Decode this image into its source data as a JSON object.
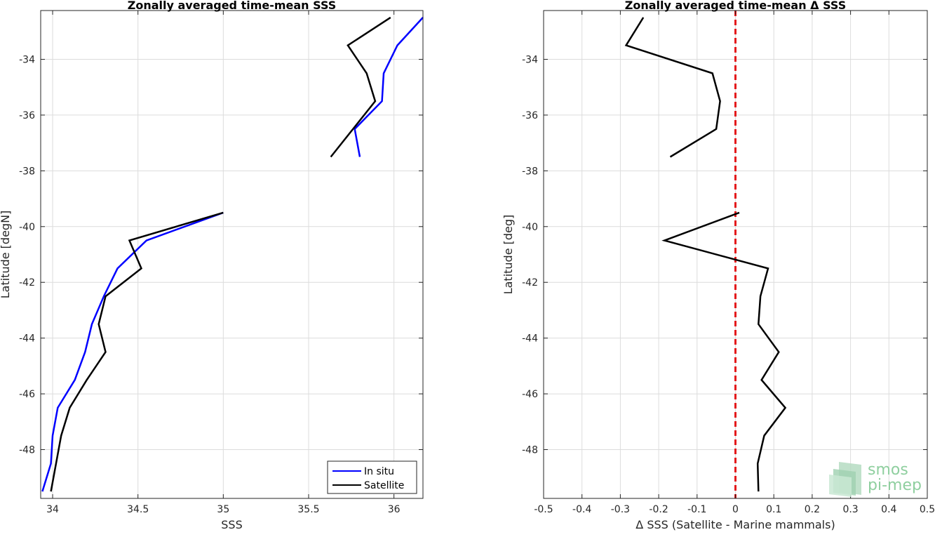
{
  "chart_data": [
    {
      "type": "line",
      "title": "Zonally averaged time-mean SSS",
      "xlabel": "SSS",
      "ylabel": "Latitude [degN]",
      "xlim": [
        33.93,
        36.17
      ],
      "ylim": [
        -49.75,
        -32.25
      ],
      "xticks": [
        34,
        34.5,
        35,
        35.5,
        36
      ],
      "xtick_labels": [
        "34",
        "34.5",
        "35",
        "35.5",
        "36"
      ],
      "yticks": [
        -48,
        -46,
        -44,
        -42,
        -40,
        -38,
        -36,
        -34
      ],
      "ytick_labels": [
        "-48",
        "-46",
        "-44",
        "-42",
        "-40",
        "-38",
        "-36",
        "-34"
      ],
      "grid": true,
      "legend": "bottom-right",
      "series": [
        {
          "name": "In situ",
          "color": "#0000ff",
          "segments": [
            [
              [
                36.17,
                -32.5
              ],
              [
                36.02,
                -33.5
              ],
              [
                35.94,
                -34.5
              ],
              [
                35.93,
                -35.5
              ],
              [
                35.77,
                -36.5
              ],
              [
                35.8,
                -37.5
              ]
            ],
            [
              [
                35.0,
                -39.5
              ],
              [
                34.55,
                -40.5
              ],
              [
                34.38,
                -41.5
              ],
              [
                34.3,
                -42.5
              ],
              [
                34.23,
                -43.5
              ],
              [
                34.19,
                -44.5
              ],
              [
                34.13,
                -45.5
              ],
              [
                34.03,
                -46.5
              ],
              [
                34.0,
                -47.5
              ],
              [
                33.99,
                -48.5
              ],
              [
                33.94,
                -49.5
              ]
            ]
          ]
        },
        {
          "name": "Satellite",
          "color": "#000000",
          "segments": [
            [
              [
                35.98,
                -32.5
              ],
              [
                35.73,
                -33.5
              ],
              [
                35.84,
                -34.5
              ],
              [
                35.89,
                -35.5
              ],
              [
                35.63,
                -37.5
              ]
            ],
            [
              [
                35.0,
                -39.5
              ],
              [
                34.45,
                -40.5
              ],
              [
                34.52,
                -41.5
              ],
              [
                34.31,
                -42.5
              ],
              [
                34.27,
                -43.5
              ],
              [
                34.31,
                -44.5
              ],
              [
                34.2,
                -45.5
              ],
              [
                34.1,
                -46.5
              ],
              [
                34.05,
                -47.5
              ],
              [
                34.02,
                -48.5
              ],
              [
                33.99,
                -49.5
              ]
            ]
          ]
        }
      ]
    },
    {
      "type": "line",
      "title": "Zonally averaged time-mean Δ SSS",
      "xlabel": "Δ SSS (Satellite - Marine mammals)",
      "ylabel": "Latitude [deg]",
      "xlim": [
        -0.5,
        0.5
      ],
      "ylim": [
        -49.75,
        -32.25
      ],
      "xticks": [
        -0.5,
        -0.4,
        -0.3,
        -0.2,
        -0.1,
        0,
        0.1,
        0.2,
        0.3,
        0.4,
        0.5
      ],
      "xtick_labels": [
        "-0.5",
        "-0.4",
        "-0.3",
        "-0.2",
        "-0.1",
        "0",
        "0.1",
        "0.2",
        "0.3",
        "0.4",
        "0.5"
      ],
      "yticks": [
        -48,
        -46,
        -44,
        -42,
        -40,
        -38,
        -36,
        -34
      ],
      "ytick_labels": [
        "-48",
        "-46",
        "-44",
        "-42",
        "-40",
        "-38",
        "-36",
        "-34"
      ],
      "grid": true,
      "reference_line": {
        "x": 0,
        "color": "#e41a1c",
        "style": "dashed"
      },
      "series": [
        {
          "color": "#000000",
          "segments": [
            [
              [
                -0.24,
                -32.5
              ],
              [
                -0.285,
                -33.5
              ],
              [
                -0.06,
                -34.5
              ],
              [
                -0.04,
                -35.5
              ],
              [
                -0.05,
                -36.5
              ],
              [
                -0.17,
                -37.5
              ]
            ],
            [
              [
                0.01,
                -39.5
              ],
              [
                -0.185,
                -40.5
              ],
              [
                0.085,
                -41.5
              ],
              [
                0.065,
                -42.5
              ],
              [
                0.06,
                -43.5
              ],
              [
                0.113,
                -44.5
              ],
              [
                0.068,
                -45.5
              ],
              [
                0.13,
                -46.5
              ],
              [
                0.075,
                -47.5
              ],
              [
                0.058,
                -48.5
              ],
              [
                0.06,
                -49.5
              ]
            ]
          ]
        }
      ]
    }
  ],
  "logo": {
    "line1": "smos",
    "line2": "pi-mep"
  }
}
